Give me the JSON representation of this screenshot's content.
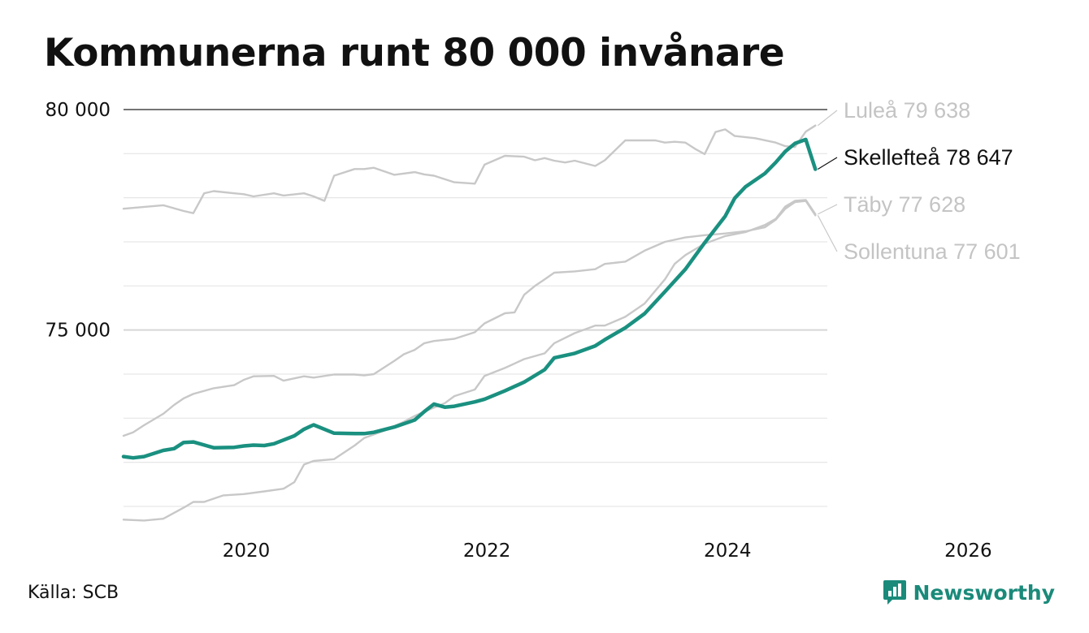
{
  "chart_data": {
    "type": "line",
    "title": "Kommunerna runt 80 000 invånare",
    "xlabel": "",
    "ylabel": "",
    "xlim": [
      2019.0,
      2026.45
    ],
    "ylim": [
      70300,
      80000
    ],
    "x_ticks": [
      2020,
      2022,
      2024,
      2026
    ],
    "x_tick_labels": [
      "2020",
      "2022",
      "2024",
      "2026"
    ],
    "y_ticks": [
      75000,
      80000
    ],
    "y_tick_labels": [
      "75 000",
      "80 000"
    ],
    "grid": true,
    "grid_step": 1000,
    "legend": "end-of-line labels, right",
    "highlight": "Skellefteå",
    "colors": {
      "highlight": "#1a9080",
      "other": "#c8c8c8",
      "highlight_label": "#111111",
      "other_label": "#c4c4c4"
    },
    "series": [
      {
        "name": "Luleå",
        "end_label": "Luleå 79 638",
        "x": [
          2019.0,
          2019.33,
          2019.5,
          2019.58,
          2019.67,
          2019.75,
          2019.92,
          2020.0,
          2020.08,
          2020.25,
          2020.33,
          2020.5,
          2020.58,
          2020.67,
          2020.75,
          2020.92,
          2021.0,
          2021.08,
          2021.25,
          2021.42,
          2021.5,
          2021.58,
          2021.75,
          2021.92,
          2022.0,
          2022.17,
          2022.33,
          2022.42,
          2022.5,
          2022.58,
          2022.67,
          2022.75,
          2022.92,
          2023.0,
          2023.17,
          2023.42,
          2023.5,
          2023.58,
          2023.67,
          2023.75,
          2023.83,
          2023.92,
          2024.0,
          2024.08,
          2024.25,
          2024.42,
          2024.5,
          2024.58,
          2024.67,
          2024.75
        ],
        "values": [
          77750,
          77830,
          77700,
          77650,
          78100,
          78150,
          78100,
          78080,
          78030,
          78100,
          78050,
          78100,
          78030,
          77930,
          78500,
          78650,
          78650,
          78680,
          78520,
          78580,
          78530,
          78500,
          78350,
          78320,
          78750,
          78950,
          78930,
          78850,
          78900,
          78840,
          78800,
          78840,
          78720,
          78850,
          79300,
          79300,
          79250,
          79270,
          79250,
          79110,
          78990,
          79490,
          79550,
          79400,
          79350,
          79250,
          79170,
          79150,
          79500,
          79638
        ]
      },
      {
        "name": "Skellefteå",
        "end_label": "Skellefteå 78 647",
        "x": [
          2019.0,
          2019.08,
          2019.17,
          2019.33,
          2019.42,
          2019.5,
          2019.58,
          2019.75,
          2019.92,
          2020.0,
          2020.08,
          2020.17,
          2020.25,
          2020.42,
          2020.5,
          2020.58,
          2020.75,
          2020.92,
          2021.0,
          2021.08,
          2021.25,
          2021.42,
          2021.5,
          2021.58,
          2021.67,
          2021.75,
          2021.92,
          2022.0,
          2022.17,
          2022.33,
          2022.5,
          2022.58,
          2022.75,
          2022.92,
          2023.0,
          2023.17,
          2023.33,
          2023.5,
          2023.67,
          2023.83,
          2024.0,
          2024.08,
          2024.17,
          2024.33,
          2024.42,
          2024.5,
          2024.58,
          2024.67,
          2024.75
        ],
        "values": [
          72130,
          72100,
          72130,
          72270,
          72310,
          72450,
          72460,
          72330,
          72340,
          72370,
          72390,
          72380,
          72420,
          72600,
          72750,
          72850,
          72660,
          72650,
          72650,
          72680,
          72800,
          72960,
          73150,
          73320,
          73250,
          73270,
          73370,
          73430,
          73620,
          73820,
          74100,
          74370,
          74470,
          74640,
          74780,
          75050,
          75370,
          75870,
          76380,
          76980,
          77580,
          77990,
          78250,
          78550,
          78800,
          79050,
          79230,
          79320,
          78647
        ]
      },
      {
        "name": "Täby",
        "end_label": "Täby 77 628",
        "x": [
          2019.0,
          2019.17,
          2019.33,
          2019.5,
          2019.58,
          2019.67,
          2019.83,
          2020.0,
          2020.17,
          2020.33,
          2020.42,
          2020.5,
          2020.58,
          2020.75,
          2020.92,
          2021.0,
          2021.17,
          2021.33,
          2021.42,
          2021.5,
          2021.58,
          2021.67,
          2021.75,
          2021.92,
          2022.0,
          2022.17,
          2022.33,
          2022.5,
          2022.58,
          2022.75,
          2022.92,
          2023.0,
          2023.17,
          2023.33,
          2023.5,
          2023.58,
          2023.67,
          2023.83,
          2024.0,
          2024.17,
          2024.33,
          2024.42,
          2024.5,
          2024.58,
          2024.67,
          2024.75
        ],
        "values": [
          70700,
          70680,
          70720,
          70970,
          71100,
          71100,
          71250,
          71280,
          71340,
          71400,
          71550,
          71950,
          72030,
          72070,
          72380,
          72550,
          72720,
          72920,
          73050,
          73150,
          73240,
          73340,
          73500,
          73650,
          73960,
          74140,
          74340,
          74470,
          74700,
          74930,
          75100,
          75100,
          75300,
          75600,
          76150,
          76500,
          76700,
          76960,
          77130,
          77220,
          77380,
          77520,
          77800,
          77930,
          77950,
          77628
        ]
      },
      {
        "name": "Sollentuna",
        "end_label": "Sollentuna 77 601",
        "x": [
          2019.0,
          2019.08,
          2019.17,
          2019.33,
          2019.42,
          2019.5,
          2019.58,
          2019.75,
          2019.92,
          2020.0,
          2020.08,
          2020.25,
          2020.33,
          2020.5,
          2020.58,
          2020.75,
          2020.92,
          2021.0,
          2021.08,
          2021.25,
          2021.33,
          2021.42,
          2021.5,
          2021.58,
          2021.75,
          2021.92,
          2022.0,
          2022.17,
          2022.25,
          2022.33,
          2022.42,
          2022.5,
          2022.58,
          2022.75,
          2022.92,
          2023.0,
          2023.17,
          2023.33,
          2023.5,
          2023.67,
          2023.83,
          2024.0,
          2024.17,
          2024.33,
          2024.42,
          2024.5,
          2024.58,
          2024.67,
          2024.75
        ],
        "values": [
          72600,
          72680,
          72840,
          73100,
          73300,
          73450,
          73550,
          73680,
          73750,
          73870,
          73950,
          73960,
          73850,
          73950,
          73920,
          73990,
          73990,
          73970,
          74000,
          74300,
          74450,
          74550,
          74700,
          74750,
          74800,
          74950,
          75150,
          75380,
          75400,
          75800,
          76000,
          76150,
          76300,
          76330,
          76380,
          76500,
          76550,
          76800,
          77000,
          77100,
          77150,
          77190,
          77240,
          77330,
          77500,
          77750,
          77900,
          77930,
          77601
        ]
      }
    ]
  },
  "source": "Källa: SCB",
  "brand": {
    "name": "Newsworthy",
    "icon": "newsworthy-logo-icon",
    "color": "#1a8a7a"
  }
}
